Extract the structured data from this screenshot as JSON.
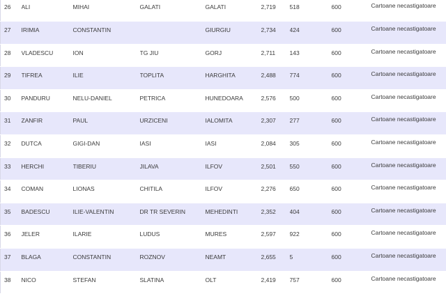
{
  "table": {
    "rows": [
      {
        "idx": "26",
        "last_name": "ALI",
        "first_name": "MIHAI",
        "locality": "GALATI",
        "county": "GALATI",
        "score": "2,719",
        "rank": "518",
        "amount": "600",
        "status": "Cartoane necastigatoare"
      },
      {
        "idx": "27",
        "last_name": "IRIMIA",
        "first_name": "CONSTANTIN",
        "locality": "",
        "county": "GIURGIU",
        "score": "2,734",
        "rank": "424",
        "amount": "600",
        "status": "Cartoane necastigatoare"
      },
      {
        "idx": "28",
        "last_name": "VLADESCU",
        "first_name": "ION",
        "locality": "TG JIU",
        "county": "GORJ",
        "score": "2,711",
        "rank": "143",
        "amount": "600",
        "status": "Cartoane necastigatoare"
      },
      {
        "idx": "29",
        "last_name": "TIFREA",
        "first_name": "ILIE",
        "locality": "TOPLITA",
        "county": "HARGHITA",
        "score": "2,488",
        "rank": "774",
        "amount": "600",
        "status": "Cartoane necastigatoare"
      },
      {
        "idx": "30",
        "last_name": "PANDURU",
        "first_name": "NELU-DANIEL",
        "locality": "PETRICA",
        "county": "HUNEDOARA",
        "score": "2,576",
        "rank": "500",
        "amount": "600",
        "status": "Cartoane necastigatoare"
      },
      {
        "idx": "31",
        "last_name": "ZANFIR",
        "first_name": "PAUL",
        "locality": "URZICENI",
        "county": "IALOMITA",
        "score": "2,307",
        "rank": "277",
        "amount": "600",
        "status": "Cartoane necastigatoare"
      },
      {
        "idx": "32",
        "last_name": "DUTCA",
        "first_name": "GIGI-DAN",
        "locality": "IASI",
        "county": "IASI",
        "score": "2,084",
        "rank": "305",
        "amount": "600",
        "status": "Cartoane necastigatoare"
      },
      {
        "idx": "33",
        "last_name": "HERCHI",
        "first_name": "TIBERIU",
        "locality": "JILAVA",
        "county": "ILFOV",
        "score": "2,501",
        "rank": "550",
        "amount": "600",
        "status": "Cartoane necastigatoare"
      },
      {
        "idx": "34",
        "last_name": "COMAN",
        "first_name": "LIONAS",
        "locality": "CHITILA",
        "county": "ILFOV",
        "score": "2,276",
        "rank": "650",
        "amount": "600",
        "status": "Cartoane necastigatoare"
      },
      {
        "idx": "35",
        "last_name": "BADESCU",
        "first_name": "ILIE-VALENTIN",
        "locality": "DR TR SEVERIN",
        "county": "MEHEDINTI",
        "score": "2,352",
        "rank": "404",
        "amount": "600",
        "status": "Cartoane necastigatoare"
      },
      {
        "idx": "36",
        "last_name": "JELER",
        "first_name": "ILARIE",
        "locality": "LUDUS",
        "county": "MURES",
        "score": "2,597",
        "rank": "922",
        "amount": "600",
        "status": "Cartoane necastigatoare"
      },
      {
        "idx": "37",
        "last_name": "BLAGA",
        "first_name": "CONSTANTIN",
        "locality": "ROZNOV",
        "county": "NEAMT",
        "score": "2,655",
        "rank": "5",
        "amount": "600",
        "status": "Cartoane necastigatoare"
      },
      {
        "idx": "38",
        "last_name": "NICO",
        "first_name": "STEFAN",
        "locality": "SLATINA",
        "county": "OLT",
        "score": "2,419",
        "rank": "757",
        "amount": "600",
        "status": "Cartoane necastigatoare"
      }
    ]
  },
  "colors": {
    "row_odd": "#ffffff",
    "row_even": "#e7e7fb",
    "text": "#3a3a3a"
  }
}
